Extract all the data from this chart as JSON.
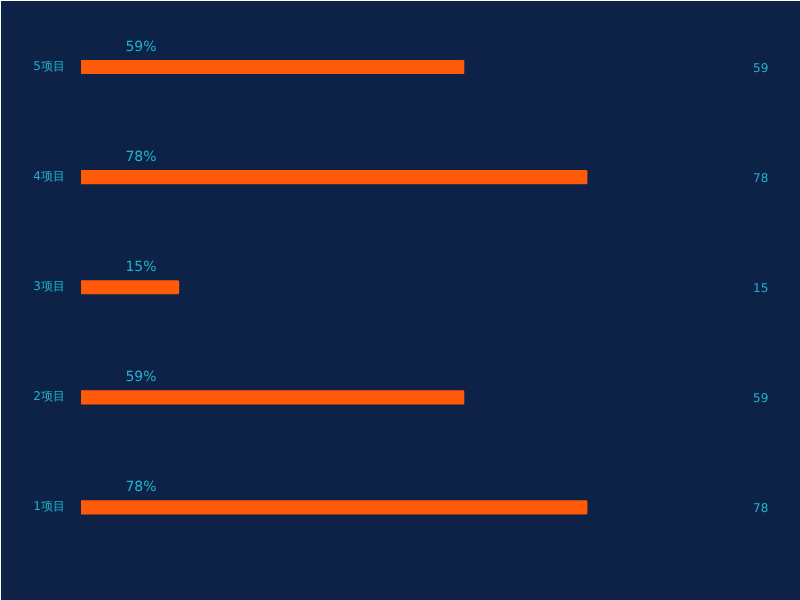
{
  "chart_data": {
    "type": "bar",
    "orientation": "horizontal",
    "categories": [
      "5项目",
      "4项目",
      "3项目",
      "2项目",
      "1项目"
    ],
    "values": [
      59,
      78,
      15,
      59,
      78
    ],
    "value_labels": [
      "59%",
      "78%",
      "15%",
      "59%",
      "78%"
    ],
    "annotations": [
      "59",
      "78",
      "15",
      "59",
      "78"
    ],
    "color": "#ff5a0a",
    "xlim": [
      0,
      100
    ],
    "grid": false
  }
}
